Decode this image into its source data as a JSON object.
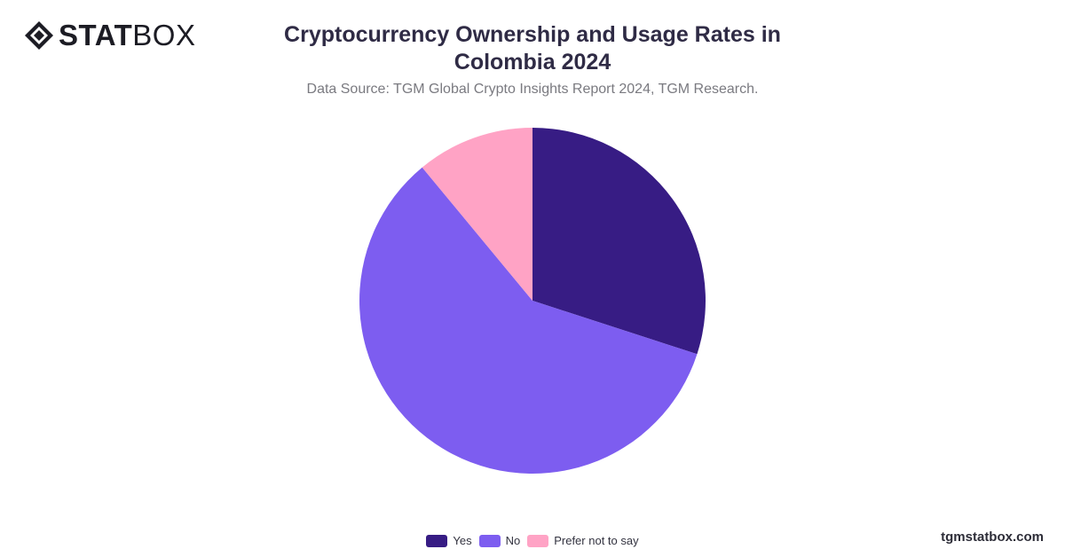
{
  "brand": {
    "logo_bold": "STAT",
    "logo_light": "BOX",
    "site": "tgmstatbox.com"
  },
  "header": {
    "title": "Cryptocurrency Ownership and Usage Rates in Colombia 2024",
    "subtitle": "Data Source: TGM Global Crypto Insights Report 2024, TGM Research."
  },
  "chart_data": {
    "type": "pie",
    "title": "Cryptocurrency Ownership and Usage Rates in Colombia 2024",
    "categories": [
      "Yes",
      "No",
      "Prefer not to say"
    ],
    "values": [
      30,
      59,
      11
    ],
    "colors": [
      "#371c84",
      "#7d5df0",
      "#ffa3c5"
    ],
    "start_angle_deg": 0,
    "direction": "clockwise",
    "legend_position": "bottom"
  }
}
